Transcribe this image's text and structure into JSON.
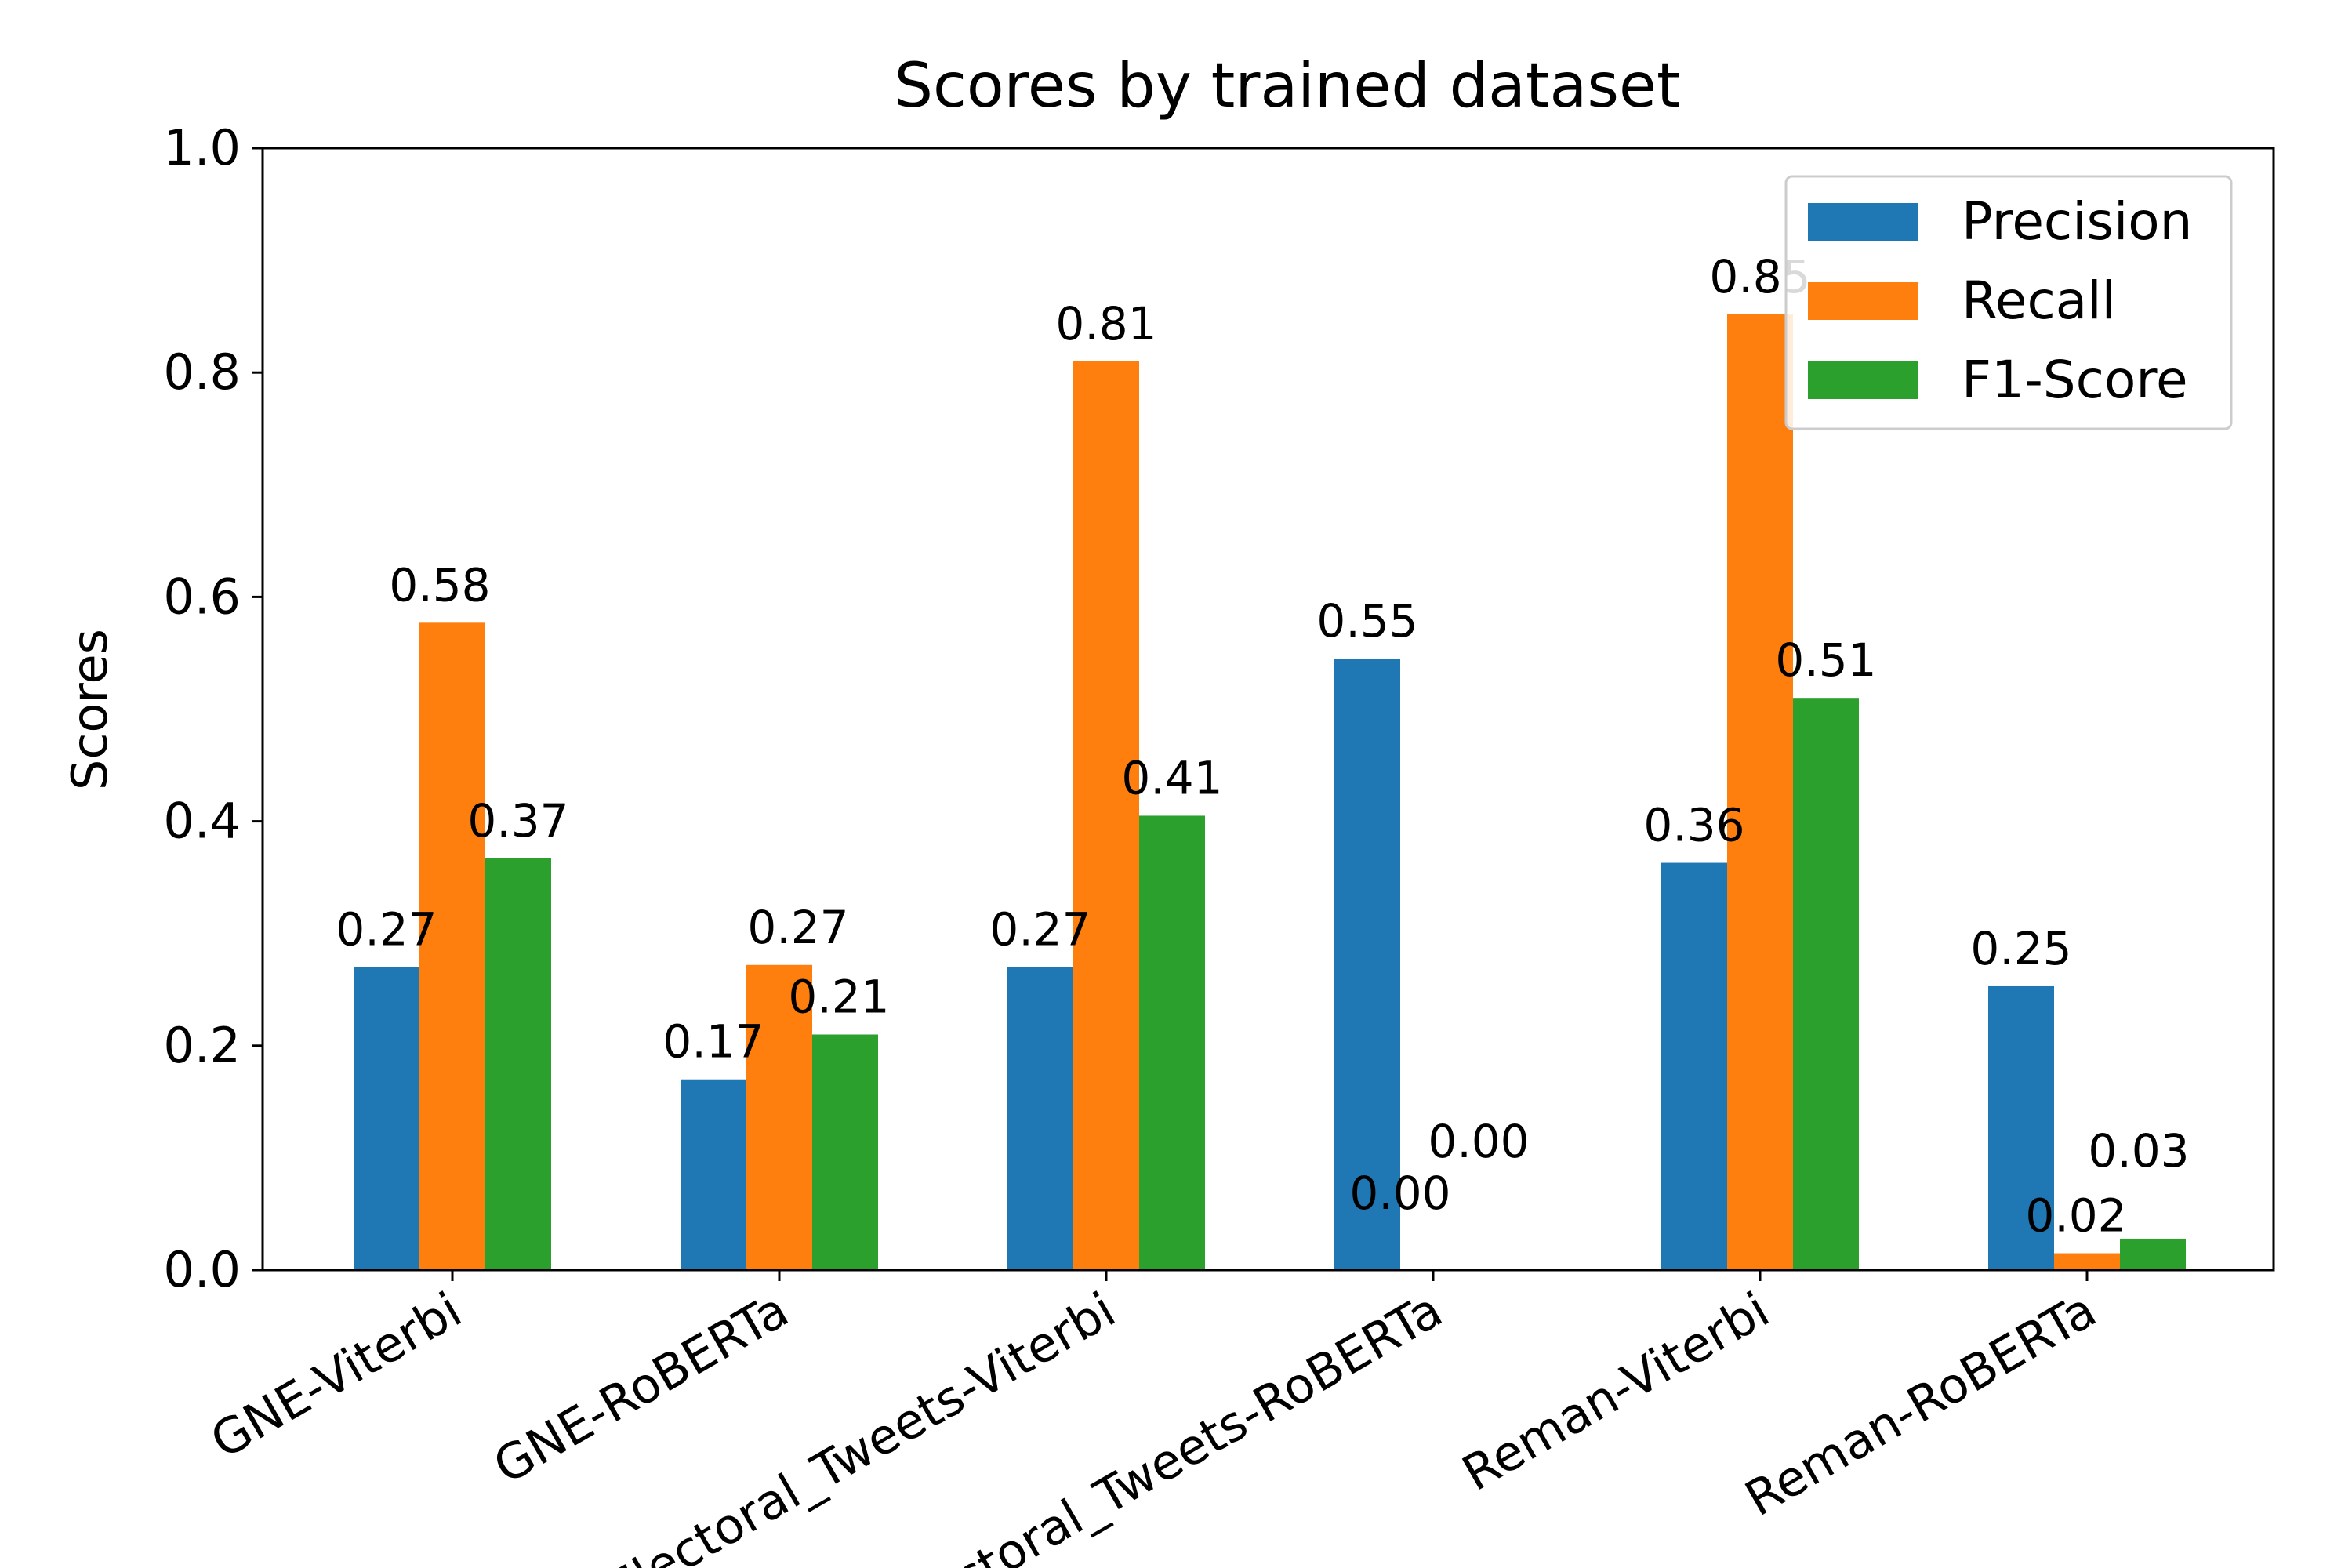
{
  "chart_data": {
    "type": "bar",
    "title": "Scores by trained dataset",
    "xlabel": "",
    "ylabel": "Scores",
    "ylim": [
      0,
      1.0
    ],
    "yticks": [
      "0.0",
      "0.2",
      "0.4",
      "0.6",
      "0.8",
      "1.0"
    ],
    "categories": [
      "GNE-Viterbi",
      "GNE-RoBERTa",
      "Electoral_Tweets-Viterbi",
      "Electoral_Tweets-RoBERTa",
      "Reman-Viterbi",
      "Reman-RoBERTa"
    ],
    "series": [
      {
        "name": "Precision",
        "color": "#1f77b4",
        "values": [
          0.27,
          0.17,
          0.27,
          0.545,
          0.363,
          0.253
        ],
        "labels": [
          "0.27",
          "0.17",
          "0.27",
          "0.55",
          "0.36",
          "0.25"
        ]
      },
      {
        "name": "Recall",
        "color": "#ff7f0e",
        "values": [
          0.577,
          0.272,
          0.81,
          0.0,
          0.852,
          0.015
        ],
        "labels": [
          "0.58",
          "0.27",
          "0.81",
          "0.00",
          "0.85",
          "0.02"
        ]
      },
      {
        "name": "F1-Score",
        "color": "#2ca02c",
        "values": [
          0.367,
          0.21,
          0.405,
          0.0,
          0.51,
          0.028
        ],
        "labels": [
          "0.37",
          "0.21",
          "0.41",
          "0.00",
          "0.51",
          "0.03"
        ]
      }
    ],
    "legend_position": "top-right",
    "grid": false,
    "xtick_rotation": 30
  }
}
